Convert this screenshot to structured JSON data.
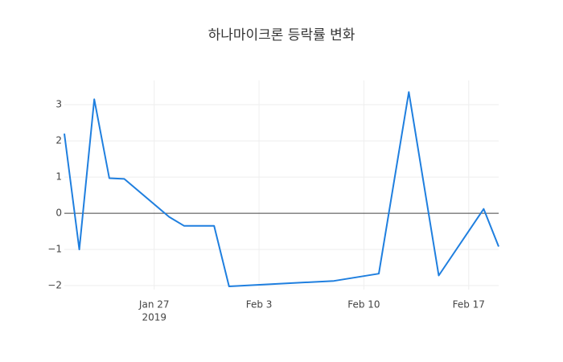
{
  "chart_data": {
    "type": "line",
    "title": "하나마이크론 등락률 변화",
    "x": [
      "2019-01-21",
      "2019-01-22",
      "2019-01-23",
      "2019-01-24",
      "2019-01-25",
      "2019-01-28",
      "2019-01-29",
      "2019-01-31",
      "2019-02-01",
      "2019-02-08",
      "2019-02-11",
      "2019-02-13",
      "2019-02-15",
      "2019-02-18",
      "2019-02-19"
    ],
    "values": [
      2.2,
      -1.0,
      3.15,
      0.97,
      0.95,
      -0.1,
      -0.35,
      -0.35,
      -2.02,
      -1.87,
      -1.67,
      3.35,
      -1.72,
      0.12,
      -0.92
    ],
    "color": "#1f7fdf",
    "xlim": [
      "2019-01-21",
      "2019-02-19"
    ],
    "xticks": [
      {
        "value": "2019-01-27",
        "label": "Jan 27",
        "sublabel": "2019"
      },
      {
        "value": "2019-02-03",
        "label": "Feb 3"
      },
      {
        "value": "2019-02-10",
        "label": "Feb 10"
      },
      {
        "value": "2019-02-17",
        "label": "Feb 17"
      }
    ],
    "ylim": [
      -2.11,
      3.67
    ],
    "yticks": [
      {
        "value": -2,
        "label": "−2"
      },
      {
        "value": -1,
        "label": "−1"
      },
      0,
      1,
      2,
      3
    ],
    "grid": true
  }
}
